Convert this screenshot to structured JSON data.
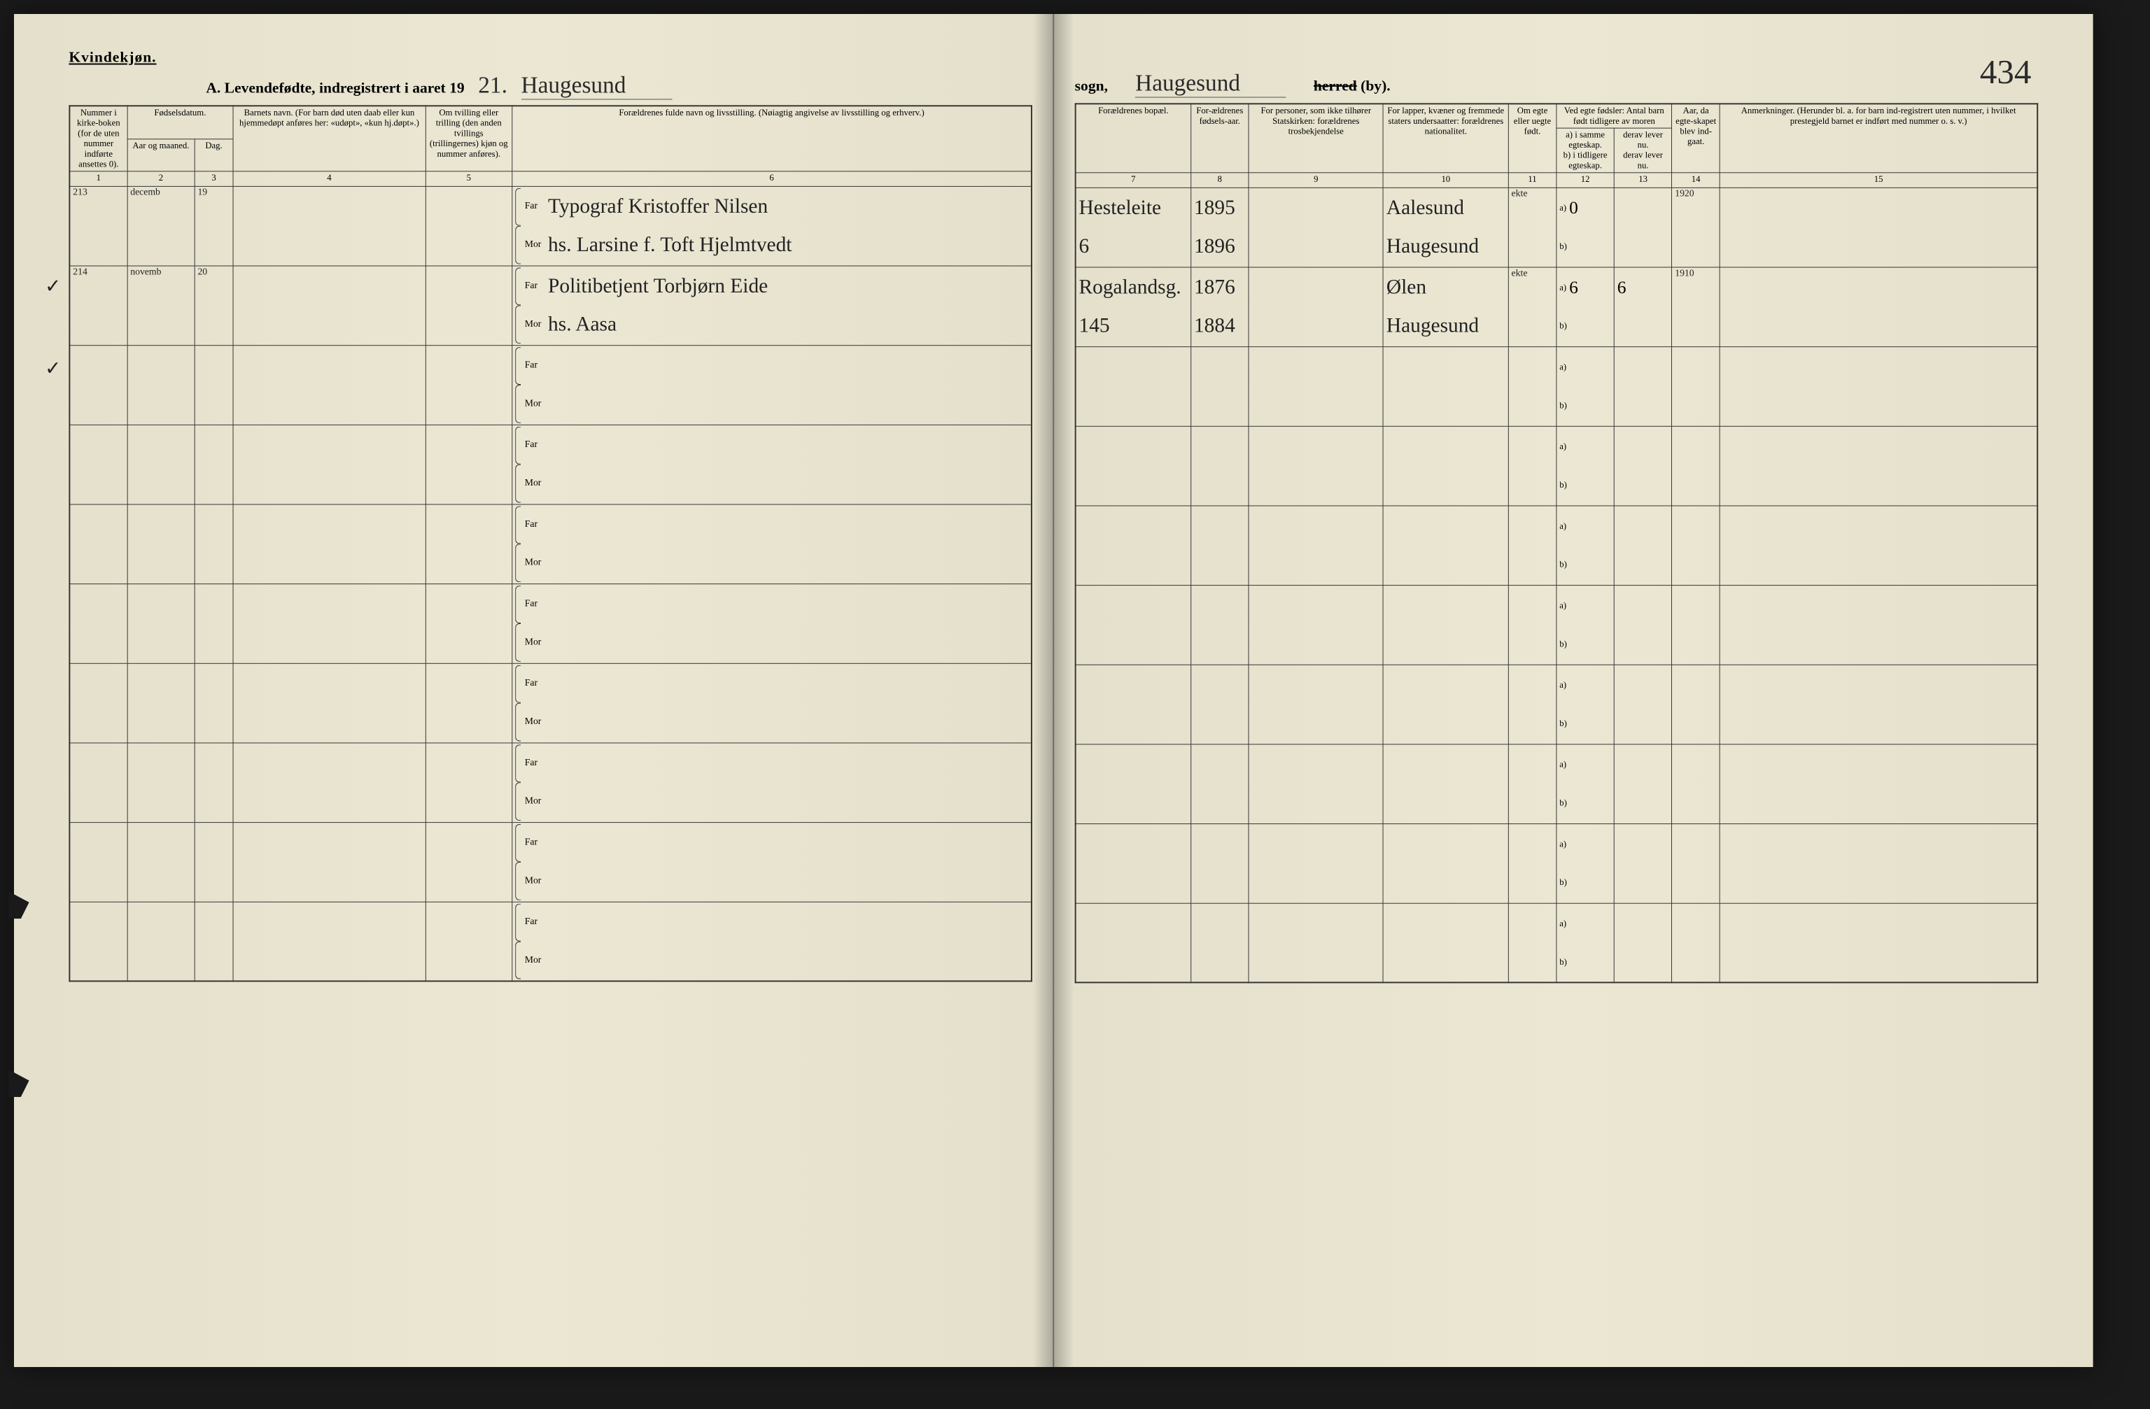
{
  "gender_label": "Kvindekjøn.",
  "title_left": {
    "prefix": "A.  Levendefødte, indregistrert i aaret 19",
    "year_suffix_hand": "21.",
    "parish_hand": "Haugesund"
  },
  "title_right": {
    "sogn_label": "sogn,",
    "herred_hand": "Haugesund",
    "herred_struck": "herred",
    "by_label": "(by)."
  },
  "page_number_hand": "434",
  "left_headers": {
    "c1": "Nummer i kirke-boken (for de uten nummer indførte ansettes 0).",
    "c2_group": "Fødselsdatum.",
    "c2a": "Aar og maaned.",
    "c2b": "Dag.",
    "c3": "Barnets navn.\n(For barn død uten daab eller kun hjemmedøpt anføres her: «udøpt», «kun hj.døpt».)",
    "c4": "Om tvilling eller trilling (den anden tvillings (trillingernes) kjøn og nummer anføres).",
    "c5": "Forældrenes fulde navn og livsstilling.\n(Nøiagtig angivelse av livsstilling og erhverv.)",
    "far": "Far",
    "mor": "Mor"
  },
  "right_headers": {
    "c6": "Forældrenes bopæl.",
    "c7": "For-ældrenes fødsels-aar.",
    "c8": "For personer, som ikke tilhører Statskirken: forældrenes trosbekjendelse",
    "c9": "For lapper, kvæner og fremmede staters undersaatter: forældrenes nationalitet.",
    "c10": "Om egte eller uegte født.",
    "c11_group": "Ved egte fødsler: Antal barn født tidligere av moren",
    "c11a": "a) i samme egteskap.",
    "c11b": "b) i tidligere egteskap.",
    "c12a": "derav lever nu.",
    "c12b": "derav lever nu.",
    "c13": "Aar, da egte-skapet blev ind-gaat.",
    "c14": "Anmerkninger.\n(Herunder bl. a. for barn ind-registrert uten nummer, i hvilket prestegjeld barnet er indført med nummer o. s. v.)"
  },
  "colnums_left": [
    "1",
    "2",
    "3",
    "4",
    "5",
    "6"
  ],
  "colnums_right": [
    "7",
    "8",
    "9",
    "10",
    "11",
    "12",
    "13",
    "14",
    "15"
  ],
  "rows": [
    {
      "tick": "✓",
      "num": "213",
      "month": "decemb",
      "day": "19",
      "name": "",
      "far": "Typograf Kristoffer Nilsen",
      "mor": "hs. Larsine f. Toft Hjelmtvedt",
      "bopel_far": "Hesteleite",
      "bopel_mor": "6",
      "aar_far": "1895",
      "aar_mor": "1896",
      "tros": "",
      "nat_far": "Aalesund",
      "nat_mor": "Haugesund",
      "egte": "ekte",
      "a": "0",
      "b": "",
      "lev_a": "",
      "lev_b": "",
      "egteskap_aar": "1920",
      "anm": ""
    },
    {
      "tick": "✓",
      "num": "214",
      "month": "novemb",
      "day": "20",
      "name": "",
      "far": "Politibetjent Torbjørn Eide",
      "mor": "hs. Aasa",
      "bopel_far": "Rogalandsg.",
      "bopel_mor": "145",
      "aar_far": "1876",
      "aar_mor": "1884",
      "tros": "",
      "nat_far": "Ølen",
      "nat_mor": "Haugesund",
      "egte": "ekte",
      "a": "6",
      "b": "",
      "lev_a": "6",
      "lev_b": "",
      "egteskap_aar": "1910",
      "anm": ""
    }
  ],
  "empty_row_count": 8,
  "colors": {
    "paper": "#e8e4d0",
    "ink": "#222222",
    "line": "#333333",
    "background": "#1a1a1a"
  }
}
